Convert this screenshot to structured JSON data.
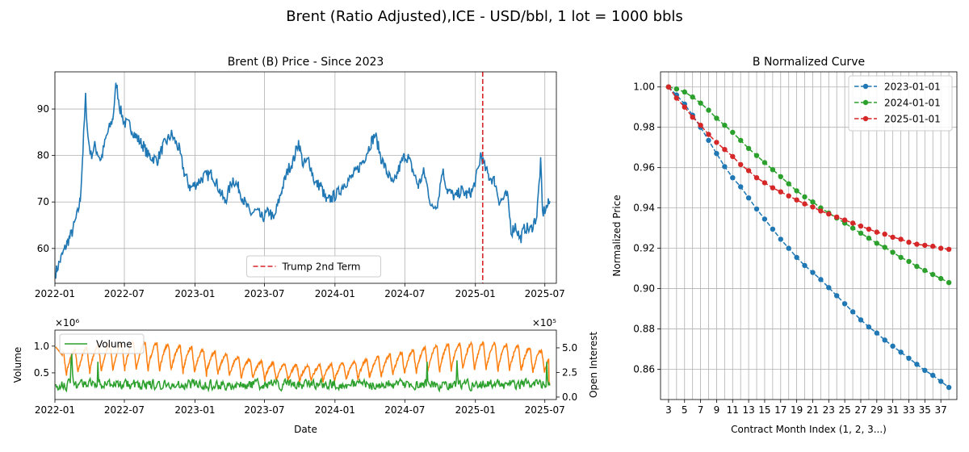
{
  "suptitle": "Brent (Ratio Adjusted),ICE - USD/bbl, 1 lot = 1000 bbls",
  "chart_data": [
    {
      "type": "line",
      "title": "Brent (B) Price - Since 2023",
      "xlabel": "",
      "ylabel": "",
      "ylim": [
        52.5,
        98
      ],
      "yticks": [
        60,
        70,
        80,
        90
      ],
      "xticks": [
        "2022-01",
        "2022-07",
        "2023-01",
        "2023-07",
        "2024-01",
        "2024-07",
        "2025-01",
        "2025-07"
      ],
      "x_start": "2022-01-01",
      "x_end": "2025-07-31",
      "grid": true,
      "series": [
        {
          "color": "#1f77b4",
          "points": [
            [
              "2022-01-03",
              54.8
            ],
            [
              "2022-01-15",
              57.5
            ],
            [
              "2022-02-01",
              61.0
            ],
            [
              "2022-02-15",
              63.5
            ],
            [
              "2022-03-01",
              67.5
            ],
            [
              "2022-03-08",
              70.5
            ],
            [
              "2022-03-15",
              81.0
            ],
            [
              "2022-03-22",
              92.5
            ],
            [
              "2022-03-28",
              84.0
            ],
            [
              "2022-04-05",
              80.0
            ],
            [
              "2022-04-15",
              82.0
            ],
            [
              "2022-05-01",
              79.0
            ],
            [
              "2022-05-15",
              84.0
            ],
            [
              "2022-06-01",
              88.0
            ],
            [
              "2022-06-10",
              95.5
            ],
            [
              "2022-06-20",
              90.0
            ],
            [
              "2022-07-01",
              87.0
            ],
            [
              "2022-07-15",
              86.5
            ],
            [
              "2022-08-01",
              84.0
            ],
            [
              "2022-08-20",
              82.0
            ],
            [
              "2022-09-01",
              80.0
            ],
            [
              "2022-09-25",
              79.0
            ],
            [
              "2022-10-10",
              82.0
            ],
            [
              "2022-11-01",
              84.5
            ],
            [
              "2022-11-20",
              81.5
            ],
            [
              "2022-12-05",
              76.0
            ],
            [
              "2022-12-20",
              73.0
            ],
            [
              "2023-01-05",
              74.0
            ],
            [
              "2023-01-25",
              75.5
            ],
            [
              "2023-02-15",
              76.0
            ],
            [
              "2023-03-01",
              73.5
            ],
            [
              "2023-03-20",
              70.0
            ],
            [
              "2023-04-10",
              75.0
            ],
            [
              "2023-04-25",
              73.0
            ],
            [
              "2023-05-10",
              70.0
            ],
            [
              "2023-05-25",
              67.5
            ],
            [
              "2023-06-10",
              68.0
            ],
            [
              "2023-06-25",
              66.5
            ],
            [
              "2023-07-15",
              68.0
            ],
            [
              "2023-07-25",
              66.0
            ],
            [
              "2023-08-15",
              72.5
            ],
            [
              "2023-09-01",
              77.0
            ],
            [
              "2023-09-15",
              79.0
            ],
            [
              "2023-09-28",
              83.0
            ],
            [
              "2023-10-10",
              78.0
            ],
            [
              "2023-10-25",
              79.0
            ],
            [
              "2023-11-10",
              74.0
            ],
            [
              "2023-11-25",
              73.5
            ],
            [
              "2023-12-10",
              70.0
            ],
            [
              "2023-12-25",
              71.0
            ],
            [
              "2024-01-10",
              72.0
            ],
            [
              "2024-01-25",
              74.0
            ],
            [
              "2024-02-10",
              75.0
            ],
            [
              "2024-02-25",
              76.5
            ],
            [
              "2024-03-15",
              79.0
            ],
            [
              "2024-04-05",
              83.0
            ],
            [
              "2024-04-15",
              84.5
            ],
            [
              "2024-04-30",
              79.5
            ],
            [
              "2024-05-15",
              76.5
            ],
            [
              "2024-06-01",
              73.5
            ],
            [
              "2024-06-15",
              77.0
            ],
            [
              "2024-07-01",
              80.0
            ],
            [
              "2024-07-10",
              79.5
            ],
            [
              "2024-07-25",
              76.0
            ],
            [
              "2024-08-05",
              73.5
            ],
            [
              "2024-08-20",
              76.5
            ],
            [
              "2024-09-10",
              68.5
            ],
            [
              "2024-09-25",
              70.0
            ],
            [
              "2024-10-07",
              77.0
            ],
            [
              "2024-10-20",
              72.5
            ],
            [
              "2024-11-10",
              71.0
            ],
            [
              "2024-11-25",
              72.5
            ],
            [
              "2024-12-10",
              71.5
            ],
            [
              "2024-12-25",
              72.5
            ],
            [
              "2025-01-10",
              77.5
            ],
            [
              "2025-01-15",
              80.5
            ],
            [
              "2025-01-25",
              77.5
            ],
            [
              "2025-02-05",
              75.5
            ],
            [
              "2025-02-20",
              74.5
            ],
            [
              "2025-03-05",
              70.0
            ],
            [
              "2025-03-25",
              71.5
            ],
            [
              "2025-04-05",
              63.5
            ],
            [
              "2025-04-15",
              65.0
            ],
            [
              "2025-04-28",
              62.0
            ],
            [
              "2025-05-10",
              64.5
            ],
            [
              "2025-05-25",
              64.0
            ],
            [
              "2025-06-10",
              67.0
            ],
            [
              "2025-06-20",
              78.5
            ],
            [
              "2025-06-25",
              67.5
            ],
            [
              "2025-07-10",
              69.5
            ],
            [
              "2025-07-15",
              70.0
            ]
          ]
        }
      ],
      "annotation": {
        "date": "2025-01-20",
        "color": "#d62728",
        "label": "Trump 2nd Term",
        "legend_position": "lower center"
      }
    },
    {
      "type": "line",
      "title": "",
      "xlabel": "Date",
      "ylabel": "Volume",
      "y2label": "Open Interest",
      "yticks": [
        0.5,
        1.0
      ],
      "ylim": [
        0.0,
        1.3
      ],
      "y_multiplier": "×10⁶",
      "y2ticks": [
        0.0,
        2.5,
        5.0
      ],
      "y2lim": [
        -0.25,
        6.8
      ],
      "y2_multiplier": "×10⁵",
      "xticks": [
        "2022-01",
        "2022-07",
        "2023-01",
        "2023-07",
        "2024-01",
        "2024-07",
        "2025-01",
        "2025-07"
      ],
      "x_start": "2022-01-01",
      "x_end": "2025-07-31",
      "grid": false,
      "legend_position": "upper left",
      "series": [
        {
          "name": "Volume",
          "color": "#2ca02c",
          "base": 0.28,
          "noise": 0.09,
          "start": 0.3
        },
        {
          "color": "#ff7f0e",
          "base_min": 3.2,
          "base_max": 5.5,
          "cycle_days": 30.4,
          "start": 5.2,
          "end_dip": 0.2
        }
      ]
    },
    {
      "type": "line",
      "title": "B Normalized Curve",
      "xlabel": "Contract Month Index (1, 2, 3...)",
      "ylabel": "Normalized Price",
      "xlim": [
        2.0,
        39.0
      ],
      "ylim": [
        0.845,
        1.0075
      ],
      "xticks": [
        3,
        5,
        7,
        9,
        11,
        13,
        15,
        17,
        19,
        21,
        23,
        25,
        27,
        29,
        31,
        33,
        35,
        37
      ],
      "yticks": [
        0.86,
        0.88,
        0.9,
        0.92,
        0.94,
        0.96,
        0.98,
        1.0
      ],
      "grid": true,
      "legend_position": "upper right",
      "x_range": [
        3,
        38
      ],
      "series": [
        {
          "name": "2023-01-01",
          "color": "#1f77b4",
          "values": [
            1.0,
            0.996,
            0.9915,
            0.986,
            0.98,
            0.9735,
            0.967,
            0.9605,
            0.955,
            0.9505,
            0.945,
            0.9395,
            0.9345,
            0.9295,
            0.9245,
            0.92,
            0.9155,
            0.9115,
            0.908,
            0.9045,
            0.9005,
            0.8965,
            0.8925,
            0.8885,
            0.8845,
            0.881,
            0.878,
            0.8745,
            0.8715,
            0.8685,
            0.8655,
            0.8625,
            0.8595,
            0.857,
            0.854,
            0.851
          ]
        },
        {
          "name": "2024-01-01",
          "color": "#2ca02c",
          "values": [
            1.0,
            0.999,
            0.9975,
            0.995,
            0.992,
            0.9885,
            0.9845,
            0.981,
            0.9775,
            0.9735,
            0.9695,
            0.966,
            0.9625,
            0.959,
            0.9555,
            0.952,
            0.9485,
            0.9455,
            0.943,
            0.94,
            0.9375,
            0.935,
            0.9325,
            0.93,
            0.9275,
            0.925,
            0.9225,
            0.9205,
            0.918,
            0.9155,
            0.9135,
            0.911,
            0.909,
            0.907,
            0.905,
            0.903
          ]
        },
        {
          "name": "2025-01-01",
          "color": "#d62728",
          "values": [
            1.0,
            0.9945,
            0.99,
            0.985,
            0.981,
            0.9765,
            0.9725,
            0.969,
            0.9655,
            0.9615,
            0.9585,
            0.955,
            0.9525,
            0.95,
            0.948,
            0.946,
            0.944,
            0.942,
            0.9405,
            0.9385,
            0.937,
            0.9355,
            0.934,
            0.9325,
            0.931,
            0.9295,
            0.928,
            0.927,
            0.9255,
            0.9245,
            0.923,
            0.922,
            0.9215,
            0.921,
            0.92,
            0.9195
          ]
        }
      ]
    }
  ]
}
